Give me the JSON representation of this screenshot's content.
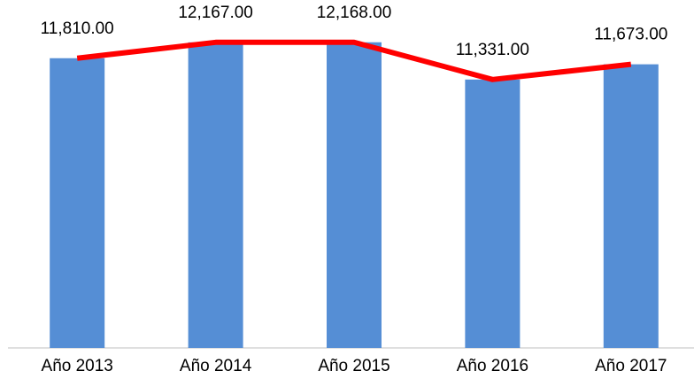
{
  "chart_data": {
    "type": "combo",
    "categories": [
      "Año 2013",
      "Año 2014",
      "Año 2015",
      "Año 2016",
      "Año 2017"
    ],
    "series": [
      {
        "type": "bar",
        "color": "#558ed5",
        "values": [
          11810,
          12167,
          12168,
          11331,
          11673
        ]
      },
      {
        "type": "line",
        "color": "#ff0000",
        "values": [
          11810,
          12167,
          12168,
          11331,
          11673
        ],
        "value_labels": [
          "11,810.00",
          "12,167.00",
          "12,168.00",
          "11,331.00",
          "11,673.00"
        ]
      }
    ],
    "ylim": [
      5300,
      12700
    ]
  }
}
